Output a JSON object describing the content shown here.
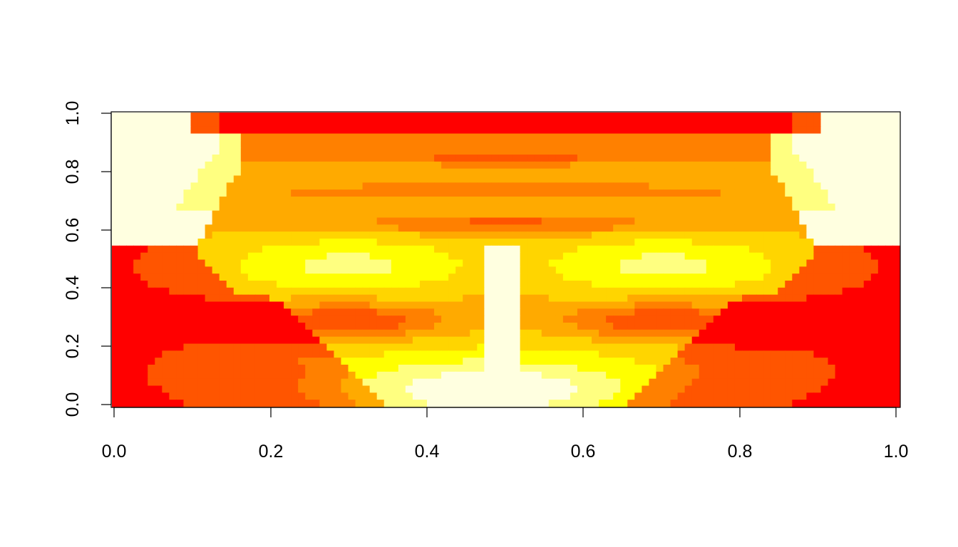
{
  "chart_data": {
    "type": "heatmap",
    "title": "",
    "xlabel": "",
    "ylabel": "",
    "xlim": [
      0,
      1
    ],
    "ylim": [
      0,
      1
    ],
    "x_ticks": [
      0.0,
      0.2,
      0.4,
      0.6,
      0.8,
      1.0
    ],
    "y_ticks": [
      0.0,
      0.2,
      0.4,
      0.6,
      0.8,
      1.0
    ],
    "x_tick_labels": [
      "0.0",
      "0.2",
      "0.4",
      "0.6",
      "0.8",
      "1.0"
    ],
    "y_tick_labels": [
      "0.0",
      "0.2",
      "0.4",
      "0.6",
      "0.8",
      "1.0"
    ],
    "grid": false,
    "legend": "none",
    "colormap": "heat.colors",
    "palette": [
      "#FF0000",
      "#FF5500",
      "#FF8000",
      "#FFAA00",
      "#FFD500",
      "#FFFF00",
      "#FFFF80",
      "#FFFFE0"
    ],
    "features": [
      {
        "kind": "eye",
        "cx": 0.3,
        "cy": 0.29,
        "rx": 0.12,
        "ry": 0.06
      },
      {
        "kind": "eye",
        "cx": 0.7,
        "cy": 0.29,
        "rx": 0.12,
        "ry": 0.06
      },
      {
        "kind": "nose-bridge",
        "cx": 0.495,
        "cy": 0.34,
        "w": 0.05,
        "h": 0.5
      },
      {
        "kind": "mouth-upper",
        "cx": 0.5,
        "cy": 0.62,
        "rx": 0.2,
        "ry": 0.03
      },
      {
        "kind": "mouth-lower",
        "cx": 0.5,
        "cy": 0.73,
        "rx": 0.3,
        "ry": 0.03
      },
      {
        "kind": "chin",
        "cx": 0.5,
        "cy": 0.84,
        "rx": 0.12,
        "ry": 0.03
      }
    ]
  }
}
